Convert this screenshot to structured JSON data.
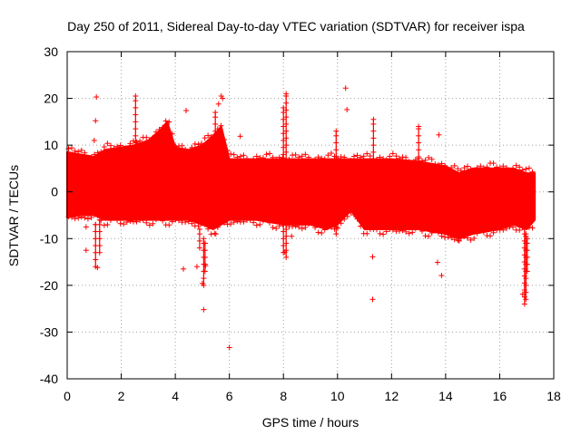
{
  "chart_data": {
    "type": "scatter",
    "title": "Day 250 of 2011, Sidereal Day-to-day VTEC variation (SDTVAR) for receiver ispa",
    "xlabel": "GPS time / hours",
    "ylabel": "SDTVAR / TECUs",
    "xlim": [
      0,
      18
    ],
    "ylim": [
      -40,
      30
    ],
    "xticks": [
      0,
      2,
      4,
      6,
      8,
      10,
      12,
      14,
      16,
      18
    ],
    "yticks": [
      -40,
      -30,
      -20,
      -10,
      0,
      10,
      20,
      30
    ],
    "grid": true,
    "marker": "+",
    "series_color": "#ff0000",
    "band": {
      "description": "dense cloud of '+' markers",
      "x": [
        0.0,
        0.5,
        1.0,
        1.4,
        2.0,
        2.5,
        3.0,
        3.4,
        3.7,
        4.0,
        4.5,
        5.0,
        5.4,
        5.7,
        6.0,
        7.0,
        8.0,
        9.0,
        9.6,
        10.0,
        10.5,
        11.0,
        12.0,
        13.0,
        14.0,
        14.5,
        15.0,
        16.0,
        16.5,
        17.0,
        17.3
      ],
      "upper": [
        8.5,
        8.0,
        7.5,
        9.0,
        9.5,
        10.0,
        11.0,
        13.0,
        15.0,
        9.5,
        9.0,
        10.0,
        12.0,
        14.0,
        7.0,
        7.0,
        7.0,
        7.0,
        7.0,
        7.0,
        7.0,
        7.0,
        7.0,
        6.5,
        5.5,
        4.0,
        5.0,
        5.0,
        5.0,
        4.0,
        4.0
      ],
      "lower": [
        -5.5,
        -5.0,
        -5.0,
        -6.0,
        -6.0,
        -6.0,
        -6.0,
        -6.0,
        -6.0,
        -6.0,
        -6.0,
        -7.0,
        -8.0,
        -7.0,
        -6.0,
        -6.0,
        -7.0,
        -7.0,
        -8.0,
        -7.0,
        -4.0,
        -8.0,
        -8.0,
        -8.0,
        -9.0,
        -10.0,
        -9.0,
        -8.0,
        -7.0,
        -8.0,
        -6.0
      ]
    },
    "spikes": [
      {
        "x": 2.53,
        "y": [
          -6,
          20.5
        ]
      },
      {
        "x": 5.48,
        "y": [
          7,
          17
        ]
      },
      {
        "x": 8.0,
        "y": [
          -13,
          18
        ]
      },
      {
        "x": 8.1,
        "y": [
          -14,
          21
        ]
      },
      {
        "x": 9.95,
        "y": [
          -9,
          13
        ]
      },
      {
        "x": 11.33,
        "y": [
          -8,
          15.5
        ]
      },
      {
        "x": 13.0,
        "y": [
          6,
          14
        ]
      },
      {
        "x": 16.92,
        "y": [
          -24,
          -8
        ]
      },
      {
        "x": 16.97,
        "y": [
          -23,
          -9
        ]
      },
      {
        "x": 17.02,
        "y": [
          -17,
          -10
        ]
      },
      {
        "x": 5.05,
        "y": [
          -20,
          -10
        ]
      },
      {
        "x": 5.1,
        "y": [
          -17,
          -11
        ]
      },
      {
        "x": 4.9,
        "y": [
          -12,
          -8
        ]
      },
      {
        "x": 1.2,
        "y": [
          -13,
          -6
        ]
      },
      {
        "x": 1.05,
        "y": [
          -16,
          -7
        ]
      }
    ],
    "outliers": [
      {
        "x": 1.08,
        "y": 20.3
      },
      {
        "x": 1.05,
        "y": 15.2
      },
      {
        "x": 1.0,
        "y": 11.0
      },
      {
        "x": 0.7,
        "y": -12.5
      },
      {
        "x": 0.7,
        "y": -7.5
      },
      {
        "x": 1.12,
        "y": -16.2
      },
      {
        "x": 4.4,
        "y": 17.4
      },
      {
        "x": 5.7,
        "y": 20.5
      },
      {
        "x": 5.75,
        "y": 20.0
      },
      {
        "x": 5.6,
        "y": 18.8
      },
      {
        "x": 6.4,
        "y": 11.9
      },
      {
        "x": 4.3,
        "y": -16.5
      },
      {
        "x": 5.05,
        "y": -25.2
      },
      {
        "x": 5.0,
        "y": -19.6
      },
      {
        "x": 5.12,
        "y": -15.8
      },
      {
        "x": 4.8,
        "y": -16.0
      },
      {
        "x": 6.0,
        "y": -33.3
      },
      {
        "x": 5.5,
        "y": -9.0
      },
      {
        "x": 8.3,
        "y": -9.5
      },
      {
        "x": 8.05,
        "y": -12.9
      },
      {
        "x": 10.3,
        "y": 22.2
      },
      {
        "x": 10.35,
        "y": 17.6
      },
      {
        "x": 11.3,
        "y": -13.9
      },
      {
        "x": 11.3,
        "y": -23.0
      },
      {
        "x": 13.75,
        "y": 12.2
      },
      {
        "x": 13.7,
        "y": -15.1
      },
      {
        "x": 13.85,
        "y": -17.9
      },
      {
        "x": 14.5,
        "y": -10.5
      },
      {
        "x": 16.85,
        "y": -21.9
      }
    ]
  }
}
